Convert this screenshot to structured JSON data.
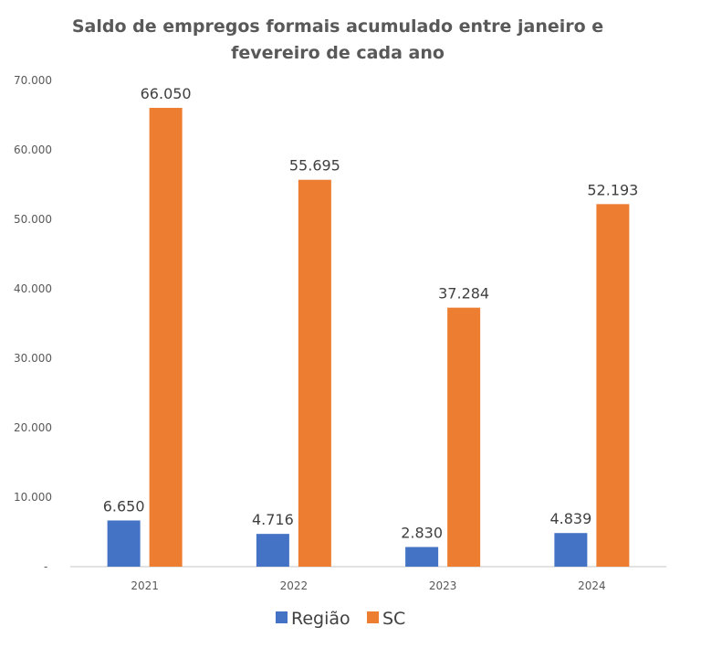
{
  "chart_data": {
    "type": "bar",
    "title_lines": [
      "Saldo de empregos formais acumulado entre janeiro e",
      "fevereiro de cada ano"
    ],
    "categories": [
      "2021",
      "2022",
      "2023",
      "2024"
    ],
    "series": [
      {
        "name": "Região",
        "color": "#4472C4",
        "values": [
          6650,
          4716,
          2830,
          4839
        ],
        "labels": [
          "6.650",
          "4.716",
          "2.830",
          "4.839"
        ]
      },
      {
        "name": "SC",
        "color": "#ED7D31",
        "values": [
          66050,
          55695,
          37284,
          52193
        ],
        "labels": [
          "66.050",
          "55.695",
          "37.284",
          "52.193"
        ]
      }
    ],
    "ylim": [
      0,
      70000
    ],
    "yticks": [
      0,
      10000,
      20000,
      30000,
      40000,
      50000,
      60000,
      70000
    ],
    "ytick_labels": [
      "-",
      "10.000",
      "20.000",
      "30.000",
      "40.000",
      "50.000",
      "60.000",
      "70.000"
    ],
    "grid": false,
    "legend_position": "bottom"
  }
}
